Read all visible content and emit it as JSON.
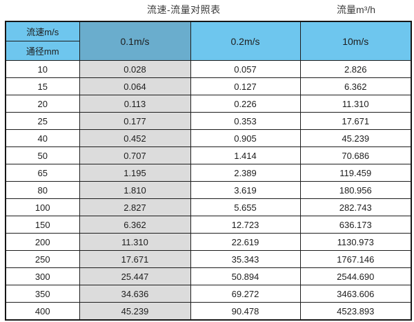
{
  "page": {
    "title": "流速-流量对照表",
    "unit_label": "流量m³/h"
  },
  "table": {
    "corner_top": "流速m/s",
    "corner_bottom": "通径mm",
    "velocity_columns": [
      "0.1m/s",
      "0.2m/s",
      "10m/s"
    ],
    "rows": [
      {
        "dn": "10",
        "values": [
          "0.028",
          "0.057",
          "2.826"
        ]
      },
      {
        "dn": "15",
        "values": [
          "0.064",
          "0.127",
          "6.362"
        ]
      },
      {
        "dn": "20",
        "values": [
          "0.113",
          "0.226",
          "11.310"
        ]
      },
      {
        "dn": "25",
        "values": [
          "0.177",
          "0.353",
          "17.671"
        ]
      },
      {
        "dn": "40",
        "values": [
          "0.452",
          "0.905",
          "45.239"
        ]
      },
      {
        "dn": "50",
        "values": [
          "0.707",
          "1.414",
          "70.686"
        ]
      },
      {
        "dn": "65",
        "values": [
          "1.195",
          "2.389",
          "119.459"
        ]
      },
      {
        "dn": "80",
        "values": [
          "1.810",
          "3.619",
          "180.956"
        ]
      },
      {
        "dn": "100",
        "values": [
          "2.827",
          "5.655",
          "282.743"
        ]
      },
      {
        "dn": "150",
        "values": [
          "6.362",
          "12.723",
          "636.173"
        ]
      },
      {
        "dn": "200",
        "values": [
          "11.310",
          "22.619",
          "1130.973"
        ]
      },
      {
        "dn": "250",
        "values": [
          "17.671",
          "35.343",
          "1767.146"
        ]
      },
      {
        "dn": "300",
        "values": [
          "25.447",
          "50.894",
          "2544.690"
        ]
      },
      {
        "dn": "350",
        "values": [
          "34.636",
          "69.272",
          "3463.606"
        ]
      },
      {
        "dn": "400",
        "values": [
          "45.239",
          "90.478",
          "4523.893"
        ]
      }
    ]
  },
  "colors": {
    "header_blue": "#6ec6ee",
    "header_blue_muted": "#6aadcd",
    "highlight_gray": "#dcdcdc",
    "border": "#1c1c1c"
  },
  "chart_data": {
    "type": "table",
    "title": "流速-流量对照表",
    "value_unit": "流量m³/h",
    "row_axis_label": "通径mm",
    "column_axis_label": "流速m/s",
    "diameters_mm": [
      10,
      15,
      20,
      25,
      40,
      50,
      65,
      80,
      100,
      150,
      200,
      250,
      300,
      350,
      400
    ],
    "series": [
      {
        "name": "0.1m/s",
        "values": [
          0.028,
          0.064,
          0.113,
          0.177,
          0.452,
          0.707,
          1.195,
          1.81,
          2.827,
          6.362,
          11.31,
          17.671,
          25.447,
          34.636,
          45.239
        ]
      },
      {
        "name": "0.2m/s",
        "values": [
          0.057,
          0.127,
          0.226,
          0.353,
          0.905,
          1.414,
          2.389,
          3.619,
          5.655,
          12.723,
          22.619,
          35.343,
          50.894,
          69.272,
          90.478
        ]
      },
      {
        "name": "10m/s",
        "values": [
          2.826,
          6.362,
          11.31,
          17.671,
          45.239,
          70.686,
          119.459,
          180.956,
          282.743,
          636.173,
          1130.973,
          1767.146,
          2544.69,
          3463.606,
          4523.893
        ]
      }
    ],
    "layout_hints": {
      "highlighted_column": "0.1m/s",
      "grid": "on",
      "header_fill": "light-blue",
      "highlight_fill": "light-gray"
    }
  }
}
